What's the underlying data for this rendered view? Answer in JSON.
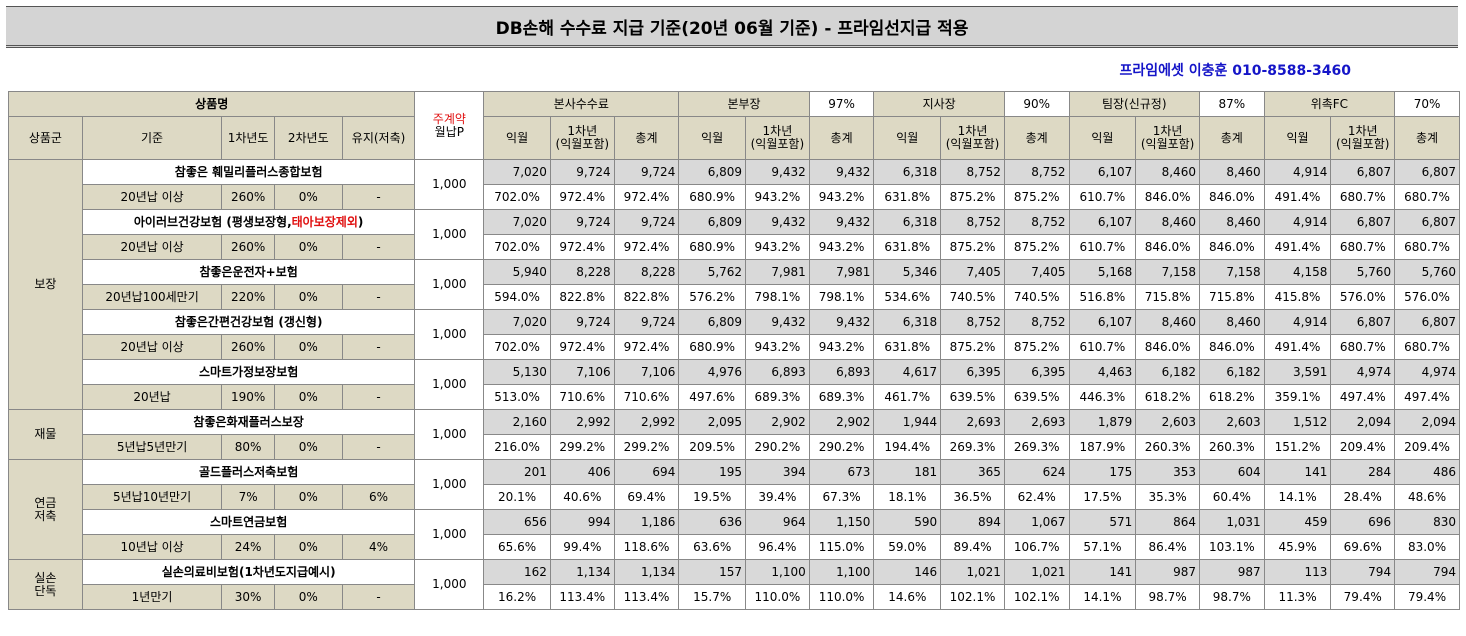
{
  "title": "DB손해 수수료 지급 기준(20년 06월 기준) - 프라임선지급 적용",
  "contact": "프라임에셋 이충훈 010-8588-3460",
  "header": {
    "product_name": "상품명",
    "group": "상품군",
    "basis": "기준",
    "year1": "1차년도",
    "year2": "2차년도",
    "maintain": "유지(저축)",
    "weekly_line1": "주계약",
    "weekly_line2": "월납P",
    "sections": [
      {
        "name": "본사수수료",
        "pct": ""
      },
      {
        "name": "본부장",
        "pct": "97%"
      },
      {
        "name": "지사장",
        "pct": "90%"
      },
      {
        "name": "팀장(신규정)",
        "pct": "87%"
      },
      {
        "name": "위촉FC",
        "pct": "70%"
      }
    ],
    "col_next": "익월",
    "col_y1_line1": "1차년",
    "col_y1_line2": "(익월포함)",
    "col_total": "총계"
  },
  "groups": [
    {
      "name": "보장",
      "name2": "",
      "rows": 5
    },
    {
      "name": "재물",
      "name2": "",
      "rows": 1
    },
    {
      "name": "연금",
      "name2": "저축",
      "rows": 2
    },
    {
      "name": "실손",
      "name2": "단독",
      "rows": 1
    }
  ],
  "products": [
    {
      "name": "참좋은 훼밀리플러스종합보험",
      "name_red": "",
      "name_end": "",
      "basis": "20년납 이상",
      "y1": "260%",
      "y2": "0%",
      "maint": "-",
      "premium": "1,000",
      "amounts": [
        "7,020",
        "9,724",
        "9,724",
        "6,809",
        "9,432",
        "9,432",
        "6,318",
        "8,752",
        "8,752",
        "6,107",
        "8,460",
        "8,460",
        "4,914",
        "6,807",
        "6,807"
      ],
      "rates": [
        "702.0%",
        "972.4%",
        "972.4%",
        "680.9%",
        "943.2%",
        "943.2%",
        "631.8%",
        "875.2%",
        "875.2%",
        "610.7%",
        "846.0%",
        "846.0%",
        "491.4%",
        "680.7%",
        "680.7%"
      ]
    },
    {
      "name": "아이러브건강보험 (평생보장형,",
      "name_red": "태아보장제외",
      "name_end": ")",
      "basis": "20년납 이상",
      "y1": "260%",
      "y2": "0%",
      "maint": "-",
      "premium": "1,000",
      "amounts": [
        "7,020",
        "9,724",
        "9,724",
        "6,809",
        "9,432",
        "9,432",
        "6,318",
        "8,752",
        "8,752",
        "6,107",
        "8,460",
        "8,460",
        "4,914",
        "6,807",
        "6,807"
      ],
      "rates": [
        "702.0%",
        "972.4%",
        "972.4%",
        "680.9%",
        "943.2%",
        "943.2%",
        "631.8%",
        "875.2%",
        "875.2%",
        "610.7%",
        "846.0%",
        "846.0%",
        "491.4%",
        "680.7%",
        "680.7%"
      ]
    },
    {
      "name": "참좋은운전자+보험",
      "name_red": "",
      "name_end": "",
      "basis": "20년납100세만기",
      "y1": "220%",
      "y2": "0%",
      "maint": "-",
      "premium": "1,000",
      "amounts": [
        "5,940",
        "8,228",
        "8,228",
        "5,762",
        "7,981",
        "7,981",
        "5,346",
        "7,405",
        "7,405",
        "5,168",
        "7,158",
        "7,158",
        "4,158",
        "5,760",
        "5,760"
      ],
      "rates": [
        "594.0%",
        "822.8%",
        "822.8%",
        "576.2%",
        "798.1%",
        "798.1%",
        "534.6%",
        "740.5%",
        "740.5%",
        "516.8%",
        "715.8%",
        "715.8%",
        "415.8%",
        "576.0%",
        "576.0%"
      ]
    },
    {
      "name": "참좋은간편건강보험 (갱신형)",
      "name_red": "",
      "name_end": "",
      "basis": "20년납 이상",
      "y1": "260%",
      "y2": "0%",
      "maint": "-",
      "premium": "1,000",
      "amounts": [
        "7,020",
        "9,724",
        "9,724",
        "6,809",
        "9,432",
        "9,432",
        "6,318",
        "8,752",
        "8,752",
        "6,107",
        "8,460",
        "8,460",
        "4,914",
        "6,807",
        "6,807"
      ],
      "rates": [
        "702.0%",
        "972.4%",
        "972.4%",
        "680.9%",
        "943.2%",
        "943.2%",
        "631.8%",
        "875.2%",
        "875.2%",
        "610.7%",
        "846.0%",
        "846.0%",
        "491.4%",
        "680.7%",
        "680.7%"
      ]
    },
    {
      "name": "스마트가정보장보험",
      "name_red": "",
      "name_end": "",
      "basis": "20년납",
      "y1": "190%",
      "y2": "0%",
      "maint": "-",
      "premium": "1,000",
      "amounts": [
        "5,130",
        "7,106",
        "7,106",
        "4,976",
        "6,893",
        "6,893",
        "4,617",
        "6,395",
        "6,395",
        "4,463",
        "6,182",
        "6,182",
        "3,591",
        "4,974",
        "4,974"
      ],
      "rates": [
        "513.0%",
        "710.6%",
        "710.6%",
        "497.6%",
        "689.3%",
        "689.3%",
        "461.7%",
        "639.5%",
        "639.5%",
        "446.3%",
        "618.2%",
        "618.2%",
        "359.1%",
        "497.4%",
        "497.4%"
      ]
    },
    {
      "name": "참좋은화재플러스보장",
      "name_red": "",
      "name_end": "",
      "basis": "5년납5년만기",
      "y1": "80%",
      "y2": "0%",
      "maint": "-",
      "premium": "1,000",
      "amounts": [
        "2,160",
        "2,992",
        "2,992",
        "2,095",
        "2,902",
        "2,902",
        "1,944",
        "2,693",
        "2,693",
        "1,879",
        "2,603",
        "2,603",
        "1,512",
        "2,094",
        "2,094"
      ],
      "rates": [
        "216.0%",
        "299.2%",
        "299.2%",
        "209.5%",
        "290.2%",
        "290.2%",
        "194.4%",
        "269.3%",
        "269.3%",
        "187.9%",
        "260.3%",
        "260.3%",
        "151.2%",
        "209.4%",
        "209.4%"
      ]
    },
    {
      "name": "골드플러스저축보험",
      "name_red": "",
      "name_end": "",
      "basis": "5년납10년만기",
      "y1": "7%",
      "y2": "0%",
      "maint": "6%",
      "premium": "1,000",
      "amounts": [
        "201",
        "406",
        "694",
        "195",
        "394",
        "673",
        "181",
        "365",
        "624",
        "175",
        "353",
        "604",
        "141",
        "284",
        "486"
      ],
      "rates": [
        "20.1%",
        "40.6%",
        "69.4%",
        "19.5%",
        "39.4%",
        "67.3%",
        "18.1%",
        "36.5%",
        "62.4%",
        "17.5%",
        "35.3%",
        "60.4%",
        "14.1%",
        "28.4%",
        "48.6%"
      ]
    },
    {
      "name": "스마트연금보험",
      "name_red": "",
      "name_end": "",
      "basis": "10년납 이상",
      "y1": "24%",
      "y2": "0%",
      "maint": "4%",
      "premium": "1,000",
      "amounts": [
        "656",
        "994",
        "1,186",
        "636",
        "964",
        "1,150",
        "590",
        "894",
        "1,067",
        "571",
        "864",
        "1,031",
        "459",
        "696",
        "830"
      ],
      "rates": [
        "65.6%",
        "99.4%",
        "118.6%",
        "63.6%",
        "96.4%",
        "115.0%",
        "59.0%",
        "89.4%",
        "106.7%",
        "57.1%",
        "86.4%",
        "103.1%",
        "45.9%",
        "69.6%",
        "83.0%"
      ]
    },
    {
      "name": "실손의료비보험(1차년도지급예시)",
      "name_red": "",
      "name_end": "",
      "basis": "1년만기",
      "y1": "30%",
      "y2": "0%",
      "maint": "-",
      "premium": "1,000",
      "amounts": [
        "162",
        "1,134",
        "1,134",
        "157",
        "1,100",
        "1,100",
        "146",
        "1,021",
        "1,021",
        "141",
        "987",
        "987",
        "113",
        "794",
        "794"
      ],
      "rates": [
        "16.2%",
        "113.4%",
        "113.4%",
        "15.7%",
        "110.0%",
        "110.0%",
        "14.6%",
        "102.1%",
        "102.1%",
        "14.1%",
        "98.7%",
        "98.7%",
        "11.3%",
        "79.4%",
        "79.4%"
      ]
    }
  ]
}
